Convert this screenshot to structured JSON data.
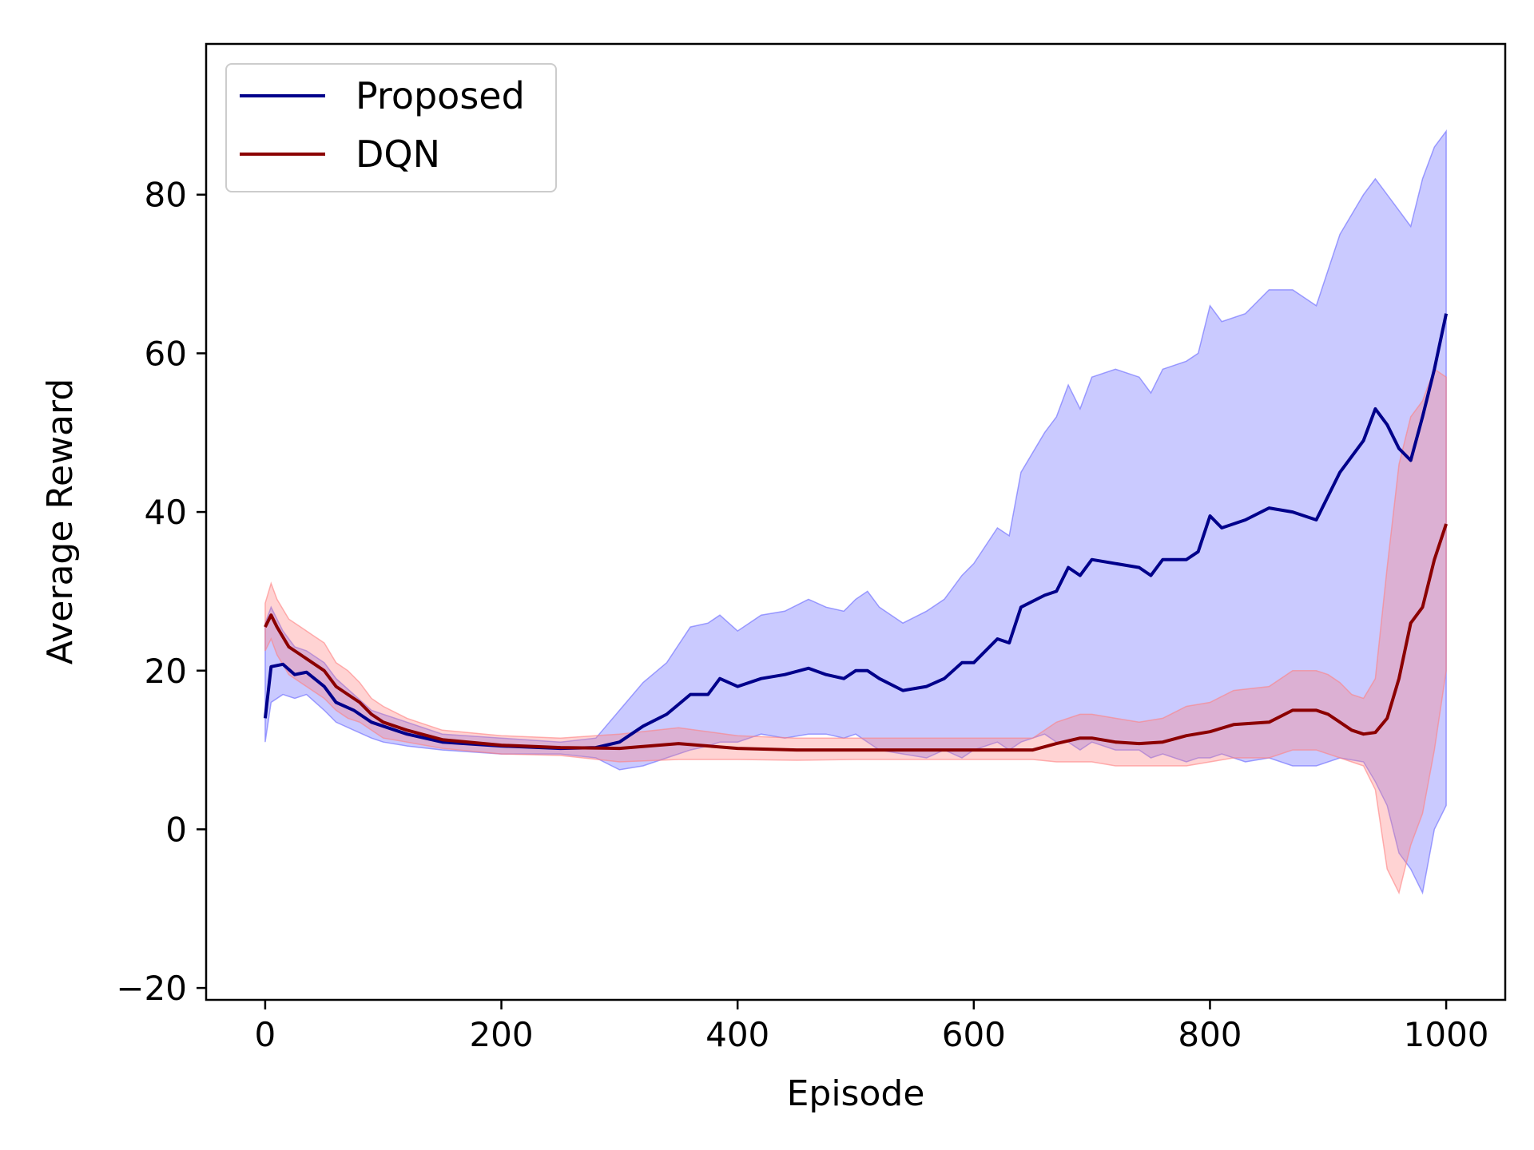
{
  "chart_data": {
    "type": "line",
    "title": "",
    "xlabel": "Episode",
    "ylabel": "Average Reward",
    "xlim": [
      -50,
      1050
    ],
    "ylim": [
      -21.5,
      99
    ],
    "x_ticks": [
      0,
      200,
      400,
      600,
      800,
      1000
    ],
    "x_tick_labels": [
      "0",
      "200",
      "400",
      "600",
      "800",
      "1000"
    ],
    "y_ticks": [
      -20,
      0,
      20,
      40,
      60,
      80
    ],
    "y_tick_labels": [
      "−20",
      "0",
      "20",
      "40",
      "60",
      "80"
    ],
    "grid": false,
    "legend_position": "top-left",
    "series": [
      {
        "name": "Proposed",
        "color": "#00008B",
        "band_color": "#6666FF",
        "x": [
          0,
          5,
          15,
          25,
          35,
          50,
          60,
          75,
          90,
          100,
          120,
          150,
          200,
          250,
          280,
          300,
          320,
          340,
          360,
          375,
          385,
          400,
          420,
          440,
          460,
          475,
          490,
          500,
          510,
          520,
          540,
          560,
          575,
          590,
          600,
          620,
          630,
          640,
          660,
          670,
          680,
          690,
          700,
          720,
          740,
          750,
          760,
          780,
          790,
          800,
          810,
          830,
          850,
          870,
          890,
          910,
          930,
          940,
          950,
          960,
          970,
          980,
          990,
          1000
        ],
        "values": [
          14,
          20.5,
          20.8,
          19.5,
          19.8,
          18,
          16,
          15,
          13.5,
          13,
          12,
          11,
          10.5,
          10.2,
          10.3,
          11,
          13,
          14.5,
          17,
          17,
          19,
          18,
          19,
          19.5,
          20.3,
          19.5,
          19,
          20,
          20,
          19,
          17.5,
          18,
          19,
          21,
          21,
          24,
          23.5,
          28,
          29.5,
          30,
          33,
          32,
          34,
          33.5,
          33,
          32,
          34,
          34,
          35,
          39.5,
          38,
          39,
          40.5,
          40,
          39,
          45,
          49,
          53,
          51,
          48,
          46.5,
          52,
          58,
          65
        ],
        "lower": [
          11,
          16,
          17,
          16.5,
          17,
          15,
          13.5,
          12.5,
          11.5,
          11,
          10.5,
          10,
          9.5,
          9.5,
          9,
          7.5,
          8,
          9,
          10,
          10.5,
          11,
          11,
          12,
          11.5,
          12,
          12,
          11.5,
          12,
          11,
          10,
          9.5,
          9,
          10,
          9,
          10,
          11,
          10,
          11,
          12,
          11,
          11,
          10,
          11,
          10,
          10,
          9,
          9.5,
          8.5,
          9,
          9,
          9.5,
          8.5,
          9,
          8,
          8,
          9,
          8.5,
          6,
          3,
          -3,
          -5,
          -8,
          0,
          3
        ],
        "upper": [
          26,
          28,
          25,
          23,
          22.5,
          21,
          19,
          17,
          15,
          14.5,
          13.5,
          12,
          11.5,
          11,
          11.5,
          15,
          18.5,
          21,
          25.5,
          26,
          27,
          25,
          27,
          27.5,
          29,
          28,
          27.5,
          29,
          30,
          28,
          26,
          27.5,
          29,
          32,
          33.5,
          38,
          37,
          45,
          50,
          52,
          56,
          53,
          57,
          58,
          57,
          55,
          58,
          59,
          60,
          66,
          64,
          65,
          68,
          68,
          66,
          75,
          80,
          82,
          80,
          78,
          76,
          82,
          86,
          88
        ]
      },
      {
        "name": "DQN",
        "color": "#8B0000",
        "band_color": "#FF8080",
        "x": [
          0,
          5,
          10,
          20,
          30,
          40,
          50,
          60,
          70,
          80,
          90,
          100,
          120,
          150,
          200,
          250,
          300,
          350,
          400,
          450,
          500,
          550,
          600,
          650,
          670,
          690,
          700,
          720,
          740,
          760,
          780,
          800,
          820,
          850,
          870,
          890,
          900,
          910,
          920,
          930,
          940,
          950,
          960,
          970,
          980,
          990,
          1000
        ],
        "values": [
          25.5,
          27,
          25.5,
          23,
          22,
          21,
          20,
          18,
          17,
          16,
          14.5,
          13.5,
          12.5,
          11.3,
          10.6,
          10.3,
          10.2,
          10.8,
          10.2,
          10,
          10,
          10,
          10,
          10,
          10.8,
          11.5,
          11.5,
          11,
          10.8,
          11,
          11.8,
          12.3,
          13.2,
          13.5,
          15,
          15,
          14.5,
          13.5,
          12.5,
          12,
          12.2,
          14,
          19,
          26,
          28,
          34,
          38.5
        ],
        "lower": [
          22.5,
          24,
          22,
          19.5,
          18.5,
          17.5,
          16.5,
          15,
          14,
          13.5,
          12.5,
          11.5,
          11,
          10.2,
          9.5,
          9.3,
          8.5,
          8.8,
          8.8,
          8.7,
          8.8,
          8.8,
          8.8,
          8.8,
          8.5,
          8.5,
          8.5,
          8,
          8,
          8,
          8,
          8.5,
          9,
          9,
          10,
          10,
          9.5,
          9,
          8.5,
          8,
          5,
          -5,
          -8,
          -2,
          2,
          10,
          20
        ],
        "upper": [
          28.5,
          31,
          29,
          26.5,
          25.5,
          24.5,
          23.5,
          21,
          20,
          18.5,
          16.5,
          15.5,
          14,
          12.5,
          11.8,
          11.5,
          12,
          12.8,
          11.8,
          11.5,
          11.5,
          11.5,
          11.5,
          11.5,
          13.5,
          14.5,
          14.5,
          14,
          13.5,
          14,
          15.5,
          16,
          17.5,
          18,
          20,
          20,
          19.5,
          18.5,
          17,
          16.5,
          19,
          33,
          46,
          52,
          54,
          58,
          57
        ]
      }
    ]
  }
}
